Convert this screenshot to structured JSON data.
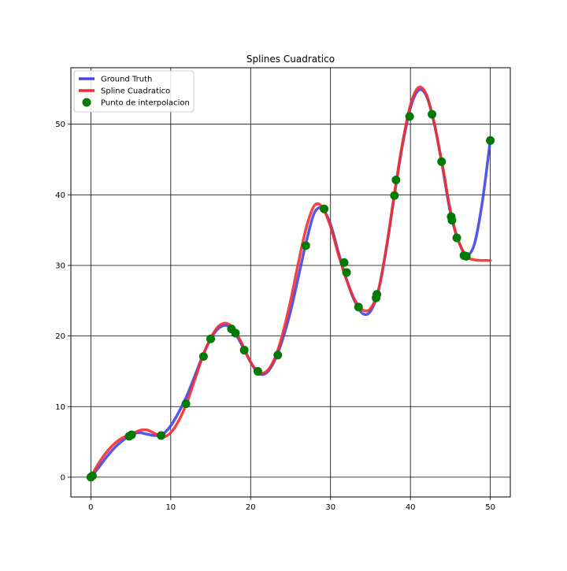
{
  "chart_data": {
    "type": "line",
    "title": "Splines Cuadratico",
    "xlabel": "",
    "ylabel": "",
    "xlim": [
      -2.5,
      52.5
    ],
    "ylim": [
      -2.8,
      58
    ],
    "xticks": [
      0,
      10,
      20,
      30,
      40,
      50
    ],
    "yticks": [
      0,
      10,
      20,
      30,
      40,
      50
    ],
    "xtick_labels": [
      "0",
      "10",
      "20",
      "30",
      "40",
      "50"
    ],
    "ytick_labels": [
      "0",
      "10",
      "20",
      "30",
      "40",
      "50"
    ],
    "grid": true,
    "legend_position": "upper-left",
    "series": [
      {
        "name": "Ground Truth",
        "kind": "line",
        "color": "#4444e6",
        "x": [
          0,
          1,
          2,
          3,
          4,
          5,
          6,
          7,
          8,
          9,
          10,
          11,
          12,
          13,
          14,
          15,
          16,
          17,
          18,
          19,
          20,
          21,
          22,
          23,
          24,
          25,
          26,
          27,
          28,
          29,
          30,
          31,
          32,
          33,
          34,
          35,
          36,
          37,
          38,
          39,
          40,
          41,
          42,
          43,
          44,
          45,
          46,
          47,
          48,
          49,
          50
        ],
        "y": [
          0,
          1.4,
          2.9,
          4.2,
          5.2,
          6.0,
          6.3,
          6.1,
          5.9,
          6.1,
          7.3,
          9.2,
          11.5,
          14.3,
          17.2,
          19.6,
          21.1,
          21.5,
          20.5,
          18.5,
          16.3,
          14.7,
          14.8,
          16.5,
          19.5,
          23.5,
          28.5,
          33.5,
          37.5,
          38.0,
          35.8,
          31.8,
          28.0,
          25.0,
          23.2,
          23.5,
          26.5,
          32.5,
          40.0,
          47.0,
          52.3,
          54.8,
          54.0,
          50.0,
          44.0,
          37.5,
          33.5,
          31.5,
          33.0,
          39.0,
          47.8
        ]
      },
      {
        "name": "Spline Cuadratico",
        "kind": "line",
        "color": "#f03030",
        "x": [
          0,
          1,
          2,
          3,
          4,
          5,
          6,
          7,
          8,
          9,
          10,
          11,
          12,
          13,
          14,
          15,
          16,
          17,
          18,
          19,
          20,
          21,
          22,
          23,
          24,
          25,
          26,
          27,
          28,
          29,
          30,
          31,
          32,
          33,
          34,
          35,
          36,
          37,
          38,
          39,
          40,
          41,
          42,
          43,
          44,
          45,
          46,
          47,
          48,
          49,
          50
        ],
        "y": [
          0,
          2.0,
          3.6,
          4.8,
          5.6,
          6.0,
          6.6,
          6.7,
          6.2,
          5.7,
          6.3,
          8.0,
          10.5,
          13.8,
          17.1,
          19.7,
          21.4,
          21.8,
          20.8,
          18.7,
          16.3,
          14.9,
          15.0,
          16.8,
          20.3,
          25.0,
          30.5,
          35.5,
          38.5,
          38.2,
          35.5,
          31.5,
          28.0,
          25.2,
          23.7,
          23.9,
          26.5,
          32.6,
          40.2,
          47.3,
          52.7,
          55.2,
          54.2,
          50.0,
          44.2,
          37.8,
          33.5,
          31.3,
          30.8,
          30.7,
          30.7
        ]
      },
      {
        "name": "Punto de interpolacion",
        "kind": "scatter",
        "color": "#007a00",
        "x": [
          0.0,
          0.2,
          4.8,
          5.1,
          8.8,
          11.9,
          14.1,
          15.0,
          17.6,
          18.1,
          19.2,
          20.9,
          23.4,
          26.9,
          29.2,
          31.7,
          32.0,
          33.5,
          35.7,
          35.8,
          38.0,
          38.2,
          39.9,
          42.7,
          43.9,
          45.1,
          45.2,
          45.8,
          46.7,
          47.0,
          50.0
        ],
        "y": [
          0.0,
          0.2,
          5.8,
          6.0,
          5.9,
          10.4,
          17.1,
          19.6,
          21.0,
          20.4,
          18.0,
          15.0,
          17.3,
          32.8,
          38.0,
          30.4,
          29.0,
          24.1,
          25.4,
          25.9,
          39.9,
          42.1,
          51.1,
          51.4,
          44.7,
          36.9,
          36.4,
          33.9,
          31.4,
          31.3,
          47.7
        ]
      }
    ]
  }
}
